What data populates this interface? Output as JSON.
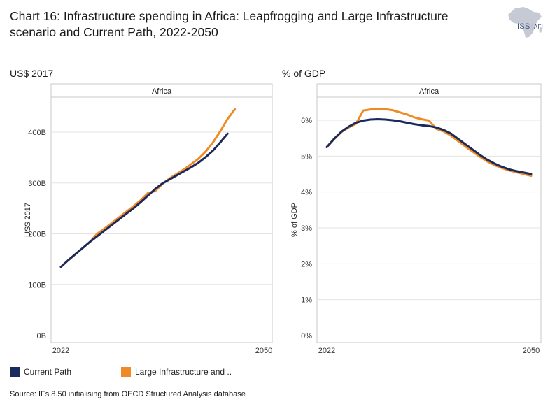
{
  "header": {
    "title": "Chart 16: Infrastructure spending in Africa: Leapfrogging and Large Infrastructure scenario and Current Path, 2022-2050",
    "logo_main": "ISS",
    "logo_sub": "AFI"
  },
  "colors": {
    "current_path": "#1b2a5c",
    "large_infra": "#f08a24",
    "grid": "#e3e3e3",
    "frame": "#c9c9c9"
  },
  "legend": {
    "current_path": "Current Path",
    "large_infra": "Large Infrastructure and .."
  },
  "source": "Source: IFs 8.50 initialising from OECD Structured Analysis database",
  "chart_data": [
    {
      "type": "line",
      "unit_label": "US$ 2017",
      "panel_title": "Africa",
      "ylabel": "US$ 2017",
      "xlim": [
        2022,
        2050
      ],
      "ylim": [
        0,
        450
      ],
      "x_ticks": [
        "2022",
        "2050"
      ],
      "y_ticks": [
        {
          "value": 0,
          "label": "0B"
        },
        {
          "value": 100,
          "label": "100B"
        },
        {
          "value": 200,
          "label": "200B"
        },
        {
          "value": 300,
          "label": "300B"
        },
        {
          "value": 400,
          "label": "400B"
        }
      ],
      "series": [
        {
          "name": "Current Path",
          "color_key": "current_path",
          "points": [
            [
              2022,
              135
            ],
            [
              2023,
              148
            ],
            [
              2024,
              160
            ],
            [
              2025,
              172
            ],
            [
              2026,
              184
            ],
            [
              2027,
              195
            ],
            [
              2028,
              206
            ],
            [
              2029,
              217
            ],
            [
              2030,
              228
            ],
            [
              2031,
              239
            ],
            [
              2032,
              250
            ],
            [
              2033,
              262
            ],
            [
              2034,
              275
            ],
            [
              2035,
              288
            ],
            [
              2036,
              299
            ],
            [
              2037,
              307
            ],
            [
              2038,
              315
            ],
            [
              2039,
              323
            ],
            [
              2040,
              331
            ],
            [
              2041,
              340
            ],
            [
              2042,
              351
            ],
            [
              2043,
              364
            ],
            [
              2044,
              380
            ],
            [
              2045,
              397
            ]
          ]
        },
        {
          "name": "Large Infrastructure and ..",
          "color_key": "large_infra",
          "points": [
            [
              2022,
              135
            ],
            [
              2023,
              148
            ],
            [
              2024,
              160
            ],
            [
              2025,
              172
            ],
            [
              2026,
              184
            ],
            [
              2027,
              200
            ],
            [
              2028,
              210
            ],
            [
              2029,
              221
            ],
            [
              2030,
              232
            ],
            [
              2031,
              243
            ],
            [
              2032,
              254
            ],
            [
              2033,
              266
            ],
            [
              2034,
              280
            ],
            [
              2035,
              284
            ],
            [
              2036,
              298
            ],
            [
              2037,
              309
            ],
            [
              2038,
              318
            ],
            [
              2039,
              327
            ],
            [
              2040,
              337
            ],
            [
              2041,
              348
            ],
            [
              2042,
              362
            ],
            [
              2043,
              380
            ],
            [
              2044,
              402
            ],
            [
              2045,
              426
            ],
            [
              2046,
              445
            ]
          ]
        }
      ]
    },
    {
      "type": "line",
      "unit_label": "% of GDP",
      "panel_title": "Africa",
      "ylabel": "% of GDP",
      "xlim": [
        2022,
        2050
      ],
      "ylim": [
        0,
        6.5
      ],
      "x_ticks": [
        "2022",
        "2050"
      ],
      "y_ticks": [
        {
          "value": 0,
          "label": "0%"
        },
        {
          "value": 1,
          "label": "1%"
        },
        {
          "value": 2,
          "label": "2%"
        },
        {
          "value": 3,
          "label": "3%"
        },
        {
          "value": 4,
          "label": "4%"
        },
        {
          "value": 5,
          "label": "5%"
        },
        {
          "value": 6,
          "label": "6%"
        }
      ],
      "series": [
        {
          "name": "Current Path",
          "color_key": "current_path",
          "points": [
            [
              2022,
              5.25
            ],
            [
              2023,
              5.48
            ],
            [
              2024,
              5.68
            ],
            [
              2025,
              5.82
            ],
            [
              2026,
              5.93
            ],
            [
              2027,
              5.99
            ],
            [
              2028,
              6.02
            ],
            [
              2029,
              6.03
            ],
            [
              2030,
              6.02
            ],
            [
              2031,
              6.0
            ],
            [
              2032,
              5.97
            ],
            [
              2033,
              5.93
            ],
            [
              2034,
              5.89
            ],
            [
              2035,
              5.86
            ],
            [
              2036,
              5.84
            ],
            [
              2037,
              5.8
            ],
            [
              2038,
              5.73
            ],
            [
              2039,
              5.63
            ],
            [
              2040,
              5.48
            ],
            [
              2041,
              5.33
            ],
            [
              2042,
              5.18
            ],
            [
              2043,
              5.03
            ],
            [
              2044,
              4.9
            ],
            [
              2045,
              4.79
            ],
            [
              2046,
              4.7
            ],
            [
              2047,
              4.63
            ],
            [
              2048,
              4.58
            ],
            [
              2049,
              4.54
            ],
            [
              2050,
              4.5
            ]
          ]
        },
        {
          "name": "Large Infrastructure and ..",
          "color_key": "large_infra",
          "points": [
            [
              2022,
              5.25
            ],
            [
              2023,
              5.47
            ],
            [
              2024,
              5.67
            ],
            [
              2025,
              5.8
            ],
            [
              2026,
              5.9
            ],
            [
              2027,
              6.27
            ],
            [
              2028,
              6.3
            ],
            [
              2029,
              6.32
            ],
            [
              2030,
              6.31
            ],
            [
              2031,
              6.28
            ],
            [
              2032,
              6.22
            ],
            [
              2033,
              6.16
            ],
            [
              2034,
              6.08
            ],
            [
              2035,
              6.03
            ],
            [
              2036,
              5.99
            ],
            [
              2037,
              5.76
            ],
            [
              2038,
              5.69
            ],
            [
              2039,
              5.57
            ],
            [
              2040,
              5.42
            ],
            [
              2041,
              5.27
            ],
            [
              2042,
              5.12
            ],
            [
              2043,
              4.98
            ],
            [
              2044,
              4.85
            ],
            [
              2045,
              4.75
            ],
            [
              2046,
              4.67
            ],
            [
              2047,
              4.6
            ],
            [
              2048,
              4.55
            ],
            [
              2049,
              4.5
            ],
            [
              2050,
              4.45
            ]
          ]
        }
      ]
    }
  ]
}
